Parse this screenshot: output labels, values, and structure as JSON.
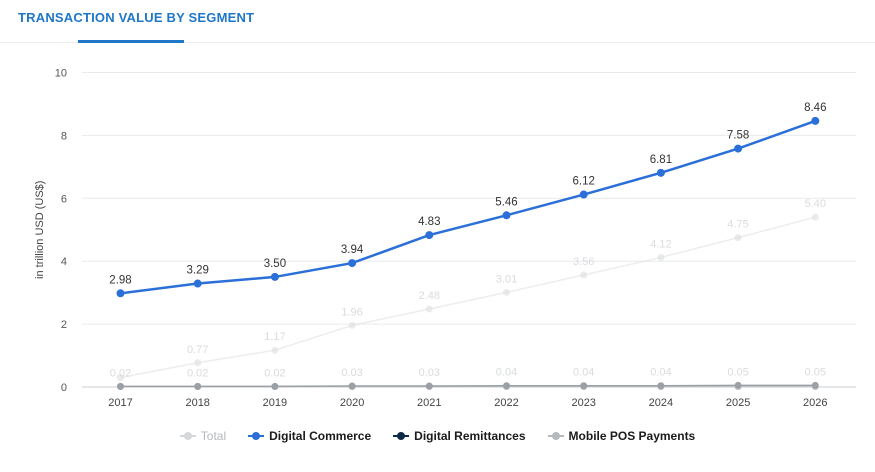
{
  "header": {
    "title": "TRANSACTION VALUE BY SEGMENT"
  },
  "legend": [
    {
      "label": "Total",
      "color": "#d6d8da",
      "active": false
    },
    {
      "label": "Digital Commerce",
      "color": "#2b6fd9",
      "active": true
    },
    {
      "label": "Digital Remittances",
      "color": "#0e2a47",
      "active": true
    },
    {
      "label": "Mobile POS Payments",
      "color": "#b7babd",
      "active": true
    }
  ],
  "chart_data": {
    "type": "line",
    "title": "TRANSACTION VALUE BY SEGMENT",
    "ylabel": "in trillion USD (US$)",
    "xlabel": "",
    "ylim": [
      0,
      10
    ],
    "yticks": [
      0,
      2,
      4,
      6,
      8,
      10
    ],
    "categories": [
      "2017",
      "2018",
      "2019",
      "2020",
      "2021",
      "2022",
      "2023",
      "2024",
      "2025",
      "2026"
    ],
    "grid": true,
    "legend_position": "bottom",
    "series": [
      {
        "name": "Total",
        "color": "#dcdee0",
        "label_color": "#d9dbdd",
        "visible": false,
        "values": [
          0.3,
          0.77,
          1.17,
          1.96,
          2.48,
          3.01,
          3.56,
          4.12,
          4.75,
          5.4
        ],
        "labels": [
          "",
          "0.77",
          "1.17",
          "1.96",
          "2.48",
          "3.01",
          "3.56",
          "4.12",
          "4.75",
          "5.40"
        ]
      },
      {
        "name": "Digital Commerce",
        "color": "#2b6fd9",
        "label_color": "#333333",
        "visible": true,
        "values": [
          2.98,
          3.29,
          3.5,
          3.94,
          4.83,
          5.46,
          6.12,
          6.81,
          7.58,
          8.46
        ],
        "labels": [
          "2.98",
          "3.29",
          "3.50",
          "3.94",
          "4.83",
          "5.46",
          "6.12",
          "6.81",
          "7.58",
          "8.46"
        ]
      },
      {
        "name": "Digital Remittances",
        "color": "#9aa0a6",
        "label_color": "#d9dbdd",
        "visible": true,
        "values": [
          0.02,
          0.02,
          0.02,
          0.03,
          0.03,
          0.04,
          0.04,
          0.04,
          0.05,
          0.05
        ],
        "labels": [
          "0.02",
          "0.02",
          "0.02",
          "0.03",
          "0.03",
          "0.04",
          "0.04",
          "0.04",
          "0.05",
          "0.05"
        ]
      },
      {
        "name": "Mobile POS Payments",
        "color": "#c4c7ca",
        "label_color": "#d9dbdd",
        "visible": true,
        "values": [
          0.01,
          0.01,
          0.01,
          0.01,
          0.01,
          0.01,
          0.01,
          0.01,
          0.01,
          0.01
        ],
        "labels": []
      }
    ]
  }
}
